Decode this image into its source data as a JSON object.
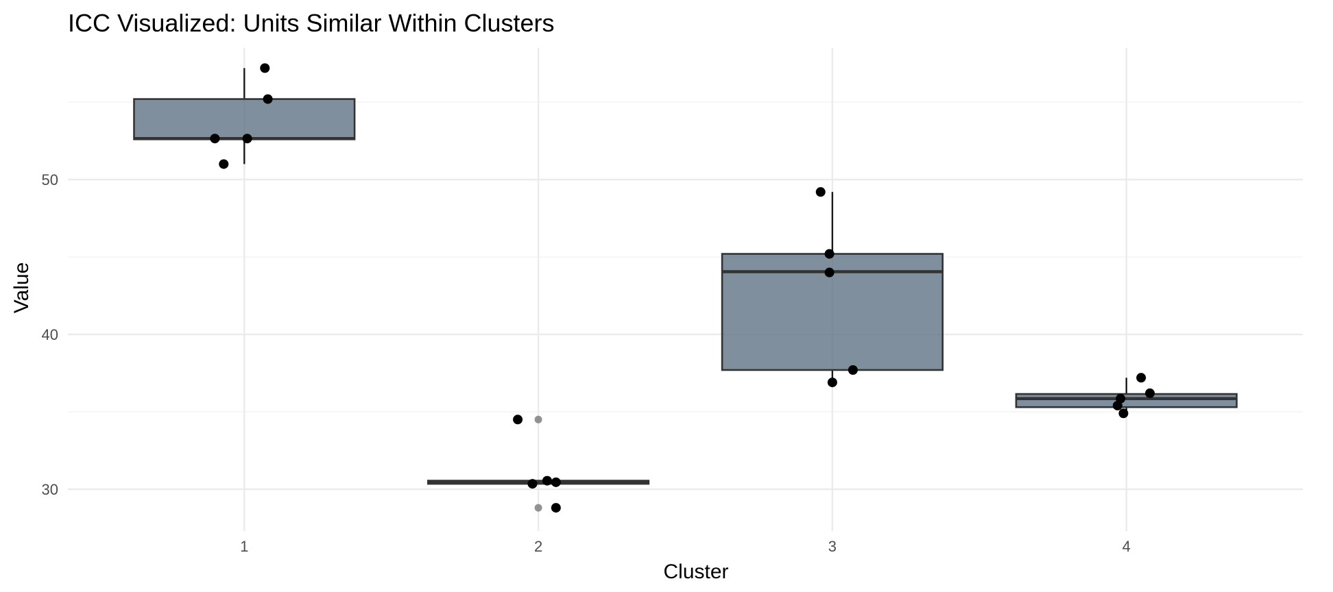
{
  "chart_data": {
    "type": "boxplot",
    "title": "ICC Visualized: Units Similar Within Clusters",
    "xlabel": "Cluster",
    "ylabel": "Value",
    "categories": [
      "1",
      "2",
      "3",
      "4"
    ],
    "y_ticks": [
      30,
      40,
      50
    ],
    "y_tick_labels": [
      "30",
      "40",
      "50"
    ],
    "ylim": [
      27.3,
      58.5
    ],
    "grid": true,
    "box_color": "#5F7385",
    "box_outline_color": "#333333",
    "point_color": "#000000",
    "outlier_color": "#7f7f7f",
    "boxes": [
      {
        "category": "1",
        "lower_whisker": 51.0,
        "q1": 52.6,
        "median": 52.65,
        "q3": 55.2,
        "upper_whisker": 57.2,
        "outliers": []
      },
      {
        "category": "2",
        "lower_whisker": 30.35,
        "q1": 30.35,
        "median": 30.45,
        "q3": 30.55,
        "upper_whisker": 30.55,
        "outliers": [
          34.5,
          28.8
        ]
      },
      {
        "category": "3",
        "lower_whisker": 36.9,
        "q1": 37.7,
        "median": 44.05,
        "q3": 45.2,
        "upper_whisker": 49.2,
        "outliers": []
      },
      {
        "category": "4",
        "lower_whisker": 34.9,
        "q1": 35.3,
        "median": 35.85,
        "q3": 36.15,
        "upper_whisker": 37.2,
        "outliers": []
      }
    ],
    "points": [
      {
        "x": 1.07,
        "y": 57.2
      },
      {
        "x": 1.08,
        "y": 55.2
      },
      {
        "x": 0.9,
        "y": 52.65
      },
      {
        "x": 1.01,
        "y": 52.65
      },
      {
        "x": 0.93,
        "y": 51.0
      },
      {
        "x": 1.93,
        "y": 34.5
      },
      {
        "x": 2.03,
        "y": 30.55
      },
      {
        "x": 2.06,
        "y": 30.45
      },
      {
        "x": 1.98,
        "y": 30.35
      },
      {
        "x": 2.06,
        "y": 28.8
      },
      {
        "x": 2.96,
        "y": 49.2
      },
      {
        "x": 2.99,
        "y": 45.2
      },
      {
        "x": 2.99,
        "y": 44.0
      },
      {
        "x": 3.07,
        "y": 37.7
      },
      {
        "x": 3.0,
        "y": 36.9
      },
      {
        "x": 4.05,
        "y": 37.2
      },
      {
        "x": 4.08,
        "y": 36.2
      },
      {
        "x": 3.98,
        "y": 35.85
      },
      {
        "x": 3.97,
        "y": 35.4
      },
      {
        "x": 3.99,
        "y": 34.9
      }
    ]
  }
}
